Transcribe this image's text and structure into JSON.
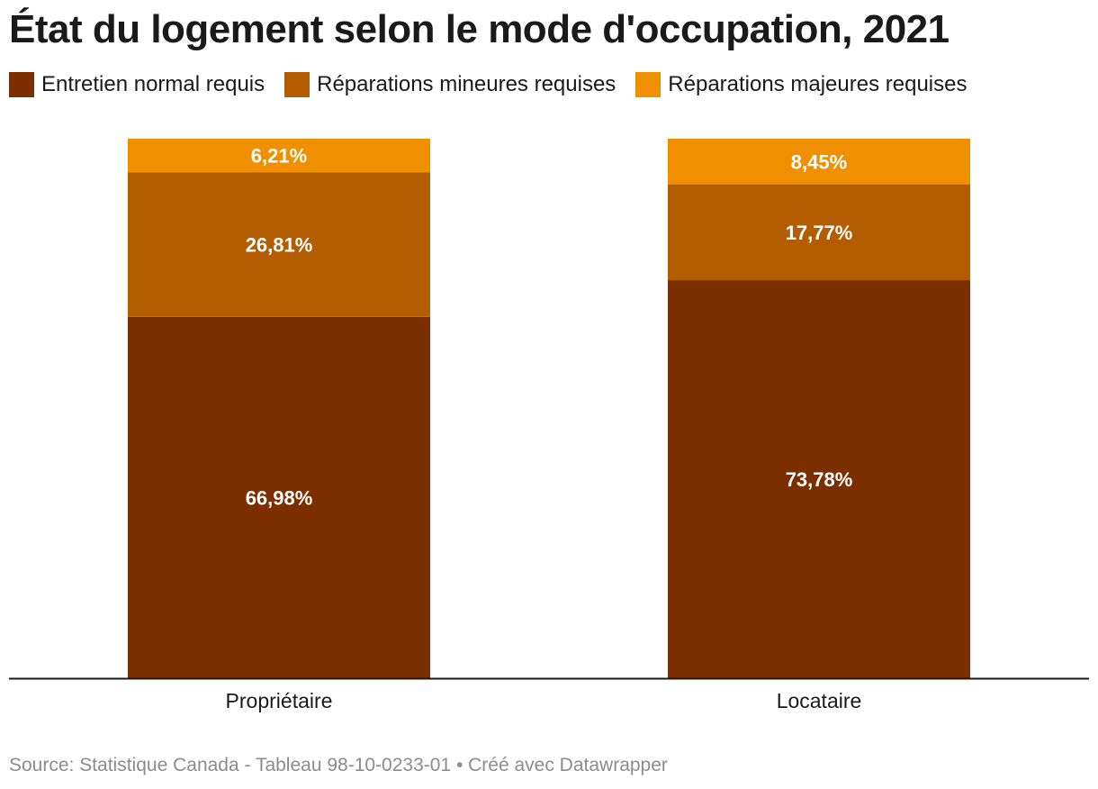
{
  "chart_data": {
    "type": "bar",
    "stacked": true,
    "orientation": "vertical",
    "title": "État du logement selon le mode d'occupation, 2021",
    "categories": [
      "Propriétaire",
      "Locataire"
    ],
    "series": [
      {
        "name": "Entretien normal requis",
        "color": "#7b2f00",
        "values": [
          66.98,
          73.78
        ],
        "labels": [
          "66,98%",
          "73,78%"
        ]
      },
      {
        "name": "Réparations mineures requises",
        "color": "#b45c00",
        "values": [
          26.81,
          17.77
        ],
        "labels": [
          "26,81%",
          "17,77%"
        ]
      },
      {
        "name": "Réparations majeures requises",
        "color": "#f09000",
        "values": [
          6.21,
          8.45
        ],
        "labels": [
          "6,21%",
          "8,45%"
        ]
      }
    ],
    "ylim": [
      0,
      100
    ],
    "grid": false,
    "legend_position": "top-left",
    "source": "Source: Statistique Canada - Tableau 98-10-0233-01 • Créé avec Datawrapper"
  }
}
